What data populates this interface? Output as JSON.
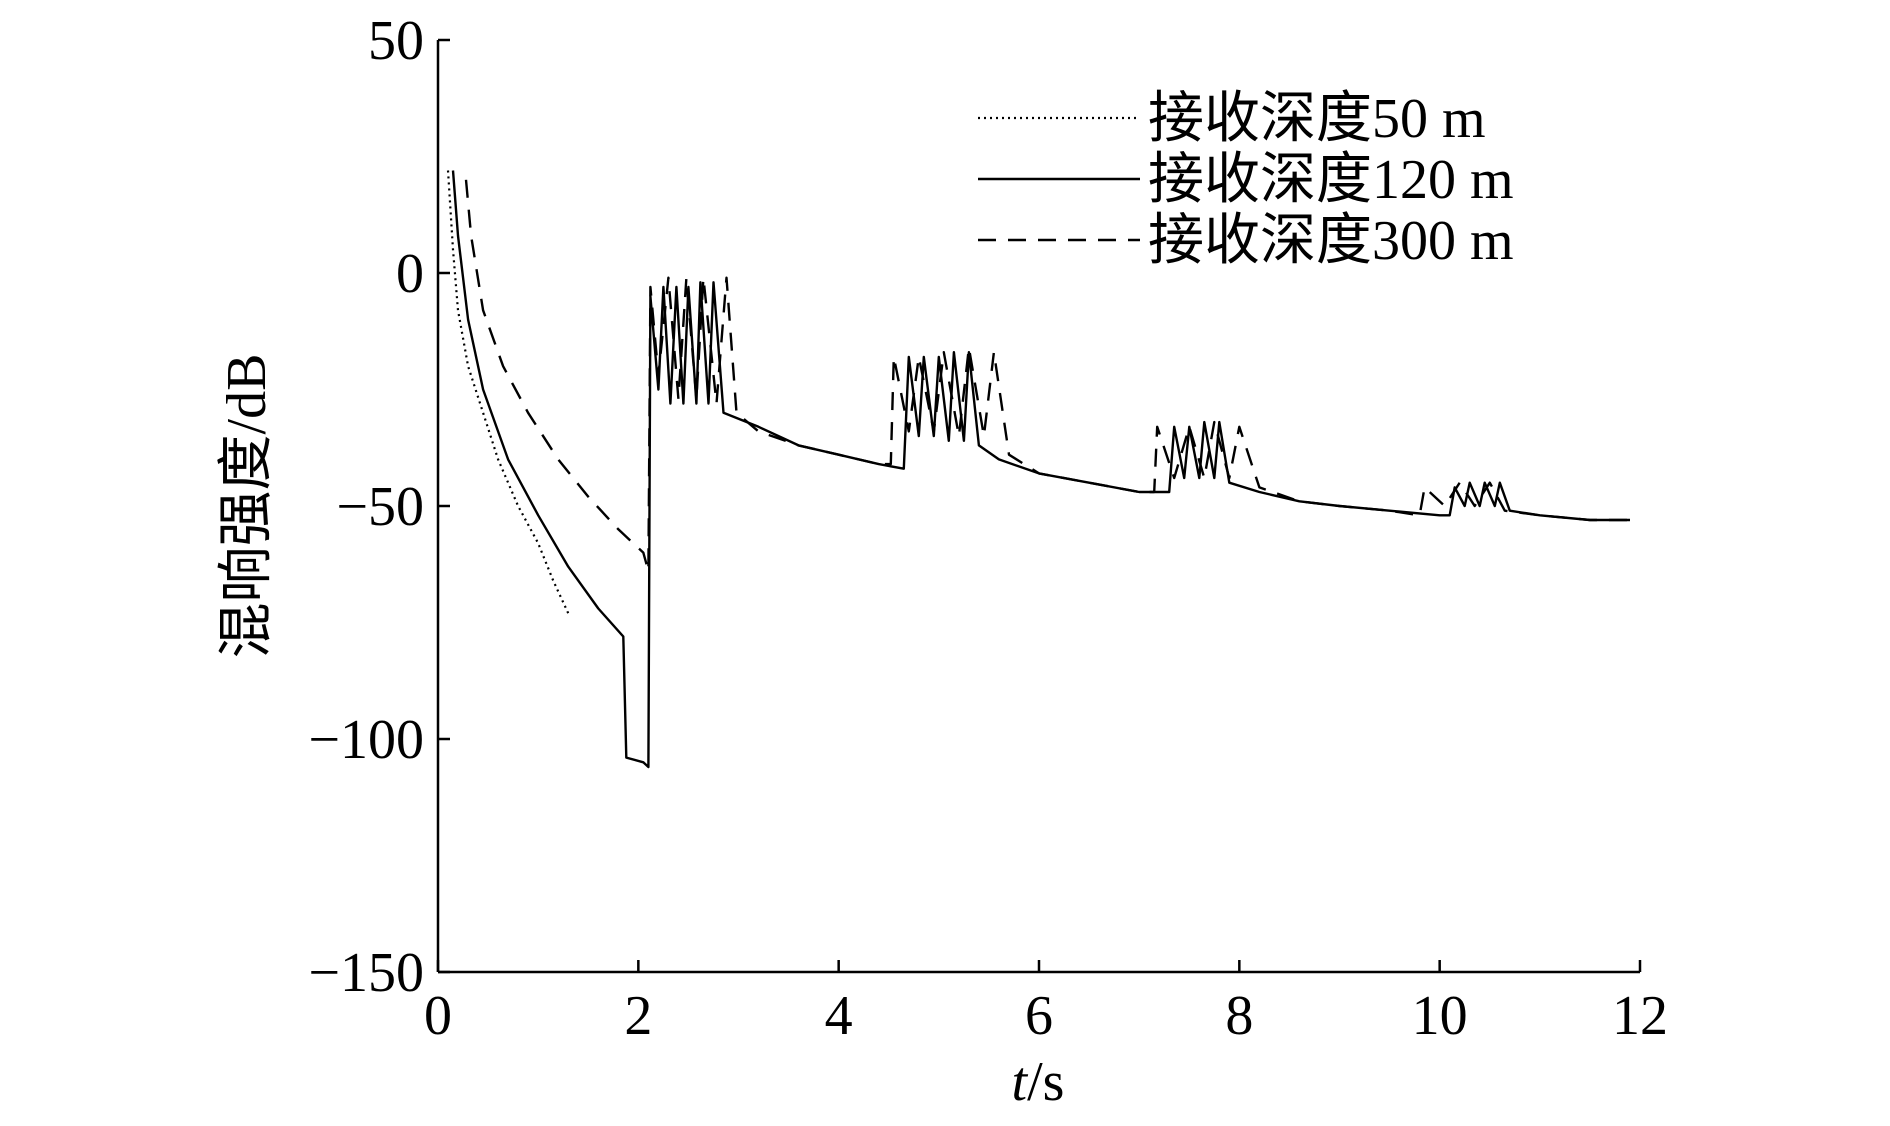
{
  "chart_data": {
    "type": "line",
    "title": "",
    "xlabel_italic": "t",
    "xlabel_unit": "/s",
    "ylabel": "混响强度/dB",
    "xlim": [
      0,
      12
    ],
    "ylim": [
      -150,
      50
    ],
    "x_ticks": [
      0,
      2,
      4,
      6,
      8,
      10,
      12
    ],
    "y_ticks": [
      -150,
      -100,
      -50,
      0,
      50
    ],
    "y_tick_labels": [
      "−150",
      "−100",
      "−50",
      "0",
      "50"
    ],
    "grid": false,
    "legend_position": "top-right",
    "series": [
      {
        "name": "接收深度50 m",
        "style": "dotted",
        "points": [
          [
            0.1,
            22
          ],
          [
            0.15,
            5
          ],
          [
            0.2,
            -8
          ],
          [
            0.3,
            -20
          ],
          [
            0.45,
            -30
          ],
          [
            0.6,
            -40
          ],
          [
            0.8,
            -50
          ],
          [
            1.0,
            -58
          ],
          [
            1.15,
            -66
          ],
          [
            1.3,
            -73
          ]
        ]
      },
      {
        "name": "接收深度120 m",
        "style": "solid",
        "points": [
          [
            0.15,
            22
          ],
          [
            0.2,
            8
          ],
          [
            0.3,
            -10
          ],
          [
            0.45,
            -25
          ],
          [
            0.7,
            -40
          ],
          [
            1.0,
            -52
          ],
          [
            1.3,
            -63
          ],
          [
            1.6,
            -72
          ],
          [
            1.85,
            -78
          ],
          [
            1.88,
            -104
          ],
          [
            2.05,
            -105
          ],
          [
            2.1,
            -106
          ],
          [
            2.12,
            -5
          ],
          [
            2.2,
            -25
          ],
          [
            2.25,
            -3
          ],
          [
            2.32,
            -28
          ],
          [
            2.38,
            -3
          ],
          [
            2.45,
            -28
          ],
          [
            2.5,
            -3
          ],
          [
            2.58,
            -28
          ],
          [
            2.62,
            -2
          ],
          [
            2.7,
            -28
          ],
          [
            2.75,
            -2
          ],
          [
            2.85,
            -30
          ],
          [
            3.2,
            -33
          ],
          [
            3.6,
            -37
          ],
          [
            4.0,
            -39
          ],
          [
            4.4,
            -41
          ],
          [
            4.65,
            -42
          ],
          [
            4.7,
            -18
          ],
          [
            4.8,
            -35
          ],
          [
            4.85,
            -18
          ],
          [
            4.95,
            -35
          ],
          [
            5.0,
            -18
          ],
          [
            5.1,
            -36
          ],
          [
            5.15,
            -17
          ],
          [
            5.25,
            -36
          ],
          [
            5.3,
            -17
          ],
          [
            5.4,
            -37
          ],
          [
            5.6,
            -40
          ],
          [
            6.0,
            -43
          ],
          [
            6.5,
            -45
          ],
          [
            7.0,
            -47
          ],
          [
            7.3,
            -47
          ],
          [
            7.35,
            -33
          ],
          [
            7.45,
            -44
          ],
          [
            7.5,
            -33
          ],
          [
            7.6,
            -44
          ],
          [
            7.65,
            -32
          ],
          [
            7.75,
            -44
          ],
          [
            7.8,
            -32
          ],
          [
            7.9,
            -45
          ],
          [
            8.2,
            -47
          ],
          [
            8.6,
            -49
          ],
          [
            9.0,
            -50
          ],
          [
            9.5,
            -51
          ],
          [
            10.0,
            -52
          ],
          [
            10.1,
            -52
          ],
          [
            10.15,
            -46
          ],
          [
            10.25,
            -50
          ],
          [
            10.3,
            -45
          ],
          [
            10.4,
            -50
          ],
          [
            10.45,
            -45
          ],
          [
            10.55,
            -50
          ],
          [
            10.6,
            -45
          ],
          [
            10.7,
            -51
          ],
          [
            11.0,
            -52
          ],
          [
            11.5,
            -53
          ],
          [
            11.9,
            -53
          ]
        ]
      },
      {
        "name": "接收深度300 m",
        "style": "dashed",
        "points": [
          [
            0.28,
            20
          ],
          [
            0.33,
            8
          ],
          [
            0.45,
            -8
          ],
          [
            0.65,
            -20
          ],
          [
            0.9,
            -30
          ],
          [
            1.2,
            -40
          ],
          [
            1.5,
            -48
          ],
          [
            1.8,
            -55
          ],
          [
            2.05,
            -60
          ],
          [
            2.1,
            -64
          ],
          [
            2.12,
            -3
          ],
          [
            2.2,
            -22
          ],
          [
            2.3,
            -1
          ],
          [
            2.4,
            -27
          ],
          [
            2.48,
            -1
          ],
          [
            2.58,
            -27
          ],
          [
            2.65,
            -1
          ],
          [
            2.78,
            -28
          ],
          [
            2.88,
            -1
          ],
          [
            2.98,
            -30
          ],
          [
            3.2,
            -34
          ],
          [
            3.6,
            -37
          ],
          [
            4.0,
            -39
          ],
          [
            4.4,
            -41
          ],
          [
            4.52,
            -41
          ],
          [
            4.55,
            -18
          ],
          [
            4.7,
            -34
          ],
          [
            4.8,
            -18
          ],
          [
            4.95,
            -34
          ],
          [
            5.05,
            -17
          ],
          [
            5.2,
            -35
          ],
          [
            5.3,
            -16
          ],
          [
            5.45,
            -35
          ],
          [
            5.55,
            -17
          ],
          [
            5.7,
            -39
          ],
          [
            6.0,
            -43
          ],
          [
            6.5,
            -45
          ],
          [
            7.0,
            -47
          ],
          [
            7.15,
            -47
          ],
          [
            7.18,
            -33
          ],
          [
            7.35,
            -44
          ],
          [
            7.5,
            -33
          ],
          [
            7.65,
            -44
          ],
          [
            7.75,
            -32
          ],
          [
            7.9,
            -44
          ],
          [
            8.0,
            -33
          ],
          [
            8.2,
            -46
          ],
          [
            8.6,
            -49
          ],
          [
            9.0,
            -50
          ],
          [
            9.5,
            -51
          ],
          [
            9.8,
            -52
          ],
          [
            9.85,
            -46
          ],
          [
            10.05,
            -50
          ],
          [
            10.2,
            -45
          ],
          [
            10.35,
            -50
          ],
          [
            10.5,
            -45
          ],
          [
            10.65,
            -51
          ],
          [
            11.0,
            -52
          ],
          [
            11.5,
            -53
          ],
          [
            11.9,
            -53
          ]
        ]
      }
    ]
  }
}
